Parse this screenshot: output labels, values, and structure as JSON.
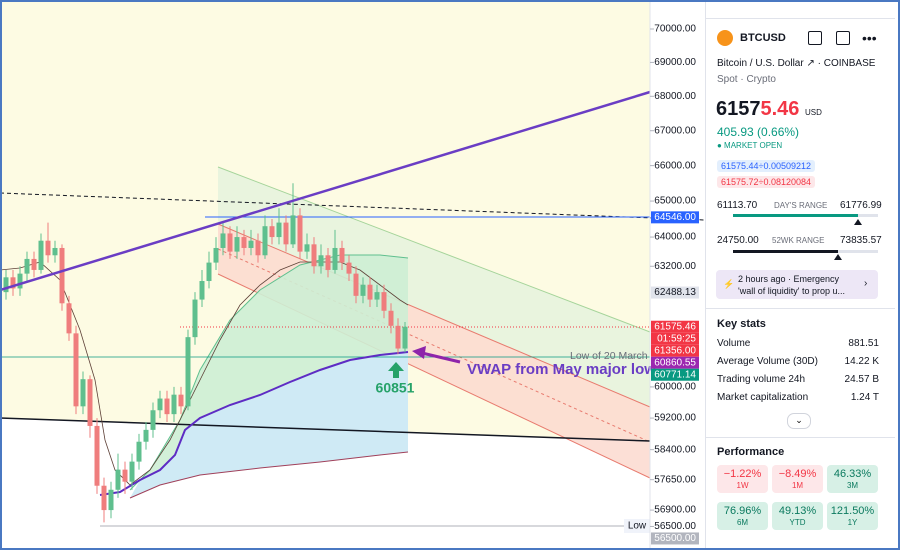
{
  "chart_data": {
    "type": "candlestick",
    "log_scale": true,
    "ylim": [
      55930,
      70880
    ],
    "yticks": [
      {
        "value": 70000,
        "label": "70000.00"
      },
      {
        "value": 69000,
        "label": "69000.00"
      },
      {
        "value": 68000,
        "label": "68000.00"
      },
      {
        "value": 67000,
        "label": "67000.00"
      },
      {
        "value": 66000,
        "label": "66000.00"
      },
      {
        "value": 65000,
        "label": "65000.00"
      },
      {
        "value": 64000,
        "label": "64000.00"
      },
      {
        "value": 63200,
        "label": "63200.00"
      },
      {
        "value": 60000,
        "label": "60000.00"
      },
      {
        "value": 59200,
        "label": "59200.00"
      },
      {
        "value": 58400,
        "label": "58400.00"
      },
      {
        "value": 57650,
        "label": "57650.00"
      },
      {
        "value": 56900,
        "label": "56900.00"
      },
      {
        "value": 56500,
        "label": "56500.00"
      }
    ],
    "up_color": "#5fbf8e",
    "down_color": "#ef7d7d",
    "ohlc": [
      [
        62500,
        63100,
        62300,
        62900
      ],
      [
        62900,
        63100,
        62400,
        62600
      ],
      [
        62600,
        63200,
        62400,
        63000
      ],
      [
        63000,
        63600,
        62800,
        63400
      ],
      [
        63400,
        63600,
        62900,
        63100
      ],
      [
        63100,
        64100,
        63000,
        63900
      ],
      [
        63900,
        64400,
        63300,
        63500
      ],
      [
        63500,
        63900,
        63300,
        63700
      ],
      [
        63700,
        63800,
        62000,
        62200
      ],
      [
        62200,
        62400,
        61200,
        61400
      ],
      [
        61400,
        61600,
        59300,
        59500
      ],
      [
        59500,
        60400,
        59300,
        60200
      ],
      [
        60200,
        60300,
        58700,
        59000
      ],
      [
        59000,
        59200,
        57300,
        57500
      ],
      [
        57500,
        57700,
        56600,
        56900
      ],
      [
        56900,
        57600,
        56700,
        57400
      ],
      [
        57400,
        58300,
        57200,
        57900
      ],
      [
        57900,
        58100,
        57300,
        57600
      ],
      [
        57600,
        58300,
        57400,
        58100
      ],
      [
        58100,
        58800,
        57900,
        58600
      ],
      [
        58600,
        59100,
        58400,
        58900
      ],
      [
        58900,
        59600,
        58700,
        59400
      ],
      [
        59400,
        59900,
        59200,
        59700
      ],
      [
        59700,
        59900,
        59100,
        59300
      ],
      [
        59300,
        60000,
        59100,
        59800
      ],
      [
        59800,
        60000,
        59300,
        59500
      ],
      [
        59500,
        61500,
        59400,
        61300
      ],
      [
        61300,
        62500,
        61100,
        62300
      ],
      [
        62300,
        63100,
        62100,
        62800
      ],
      [
        62800,
        63600,
        62600,
        63300
      ],
      [
        63300,
        64000,
        63100,
        63700
      ],
      [
        63700,
        64400,
        63500,
        64100
      ],
      [
        64100,
        64300,
        63400,
        63600
      ],
      [
        63600,
        64300,
        63400,
        64000
      ],
      [
        64000,
        64200,
        63500,
        63700
      ],
      [
        63700,
        64200,
        63500,
        63900
      ],
      [
        63900,
        64100,
        63300,
        63500
      ],
      [
        63500,
        64600,
        63400,
        64300
      ],
      [
        64300,
        64500,
        63800,
        64000
      ],
      [
        64000,
        64800,
        63800,
        64400
      ],
      [
        64400,
        64600,
        63600,
        63800
      ],
      [
        63800,
        65500,
        63700,
        64600
      ],
      [
        64600,
        64800,
        63400,
        63600
      ],
      [
        63600,
        64100,
        63400,
        63800
      ],
      [
        63800,
        64000,
        63000,
        63200
      ],
      [
        63200,
        63800,
        63000,
        63500
      ],
      [
        63500,
        63700,
        62900,
        63100
      ],
      [
        63100,
        64200,
        63000,
        63700
      ],
      [
        63700,
        63900,
        63100,
        63300
      ],
      [
        63300,
        63500,
        62800,
        63000
      ],
      [
        63000,
        63200,
        62200,
        62400
      ],
      [
        62400,
        62900,
        62200,
        62700
      ],
      [
        62700,
        62900,
        62100,
        62300
      ],
      [
        62300,
        62700,
        62100,
        62500
      ],
      [
        62500,
        62700,
        61800,
        62000
      ],
      [
        62000,
        62200,
        61400,
        61600
      ],
      [
        61600,
        61800,
        60851,
        61000
      ],
      [
        61000,
        61700,
        60900,
        61575
      ]
    ],
    "price_tags": [
      {
        "value": 64546,
        "label": "64546.00",
        "color": "#2962ff"
      },
      {
        "value": 62488.13,
        "label": "62488.13",
        "color": "#e0e3eb",
        "text_color": "#131722"
      },
      {
        "value": 61575.46,
        "label": "61575.46",
        "countdown": "01:59:25",
        "color": "#f23645"
      },
      {
        "value": 61356,
        "label": "61356.00",
        "color": "#f23645"
      },
      {
        "value": 60860.55,
        "label": "60860.55",
        "color": "#9c27b0"
      },
      {
        "value": 60771.14,
        "label": "60771.14",
        "color": "#089981"
      },
      {
        "value": 56500,
        "label": "56500.00",
        "color": "#b2b5be"
      }
    ],
    "annotations": {
      "vwap": "VWAP from May major low",
      "low_point": "60851",
      "low_march": "Low of 20 March",
      "low": "Low"
    }
  },
  "panel": {
    "symbol": "BTCUSD",
    "name": "Bitcoin / U.S. Dollar",
    "exchange": "· COINBASE",
    "kind": "Spot · Crypto",
    "price_main": "6157",
    "price_tail": "5.46",
    "currency": "USD",
    "change": "405.93 (0.66%)",
    "status": "● MARKET OPEN",
    "bid": "61575.44÷0.00509212",
    "ask": "61575.72÷0.08120084",
    "day_low": "61113.70",
    "day_label": "DAY'S RANGE",
    "day_high": "61776.99",
    "wk_low": "24750.00",
    "wk_label": "52WK RANGE",
    "wk_high": "73835.57",
    "news_time": "2 hours ago  ·  Emergency",
    "news_text": "'wall of liquidity' to prop u...",
    "key_stats": "Key stats",
    "stats": [
      [
        "Volume",
        "881.51"
      ],
      [
        "Average Volume (30D)",
        "14.22 K"
      ],
      [
        "Trading volume 24h",
        "24.57 B"
      ],
      [
        "Market capitalization",
        "1.24 T"
      ]
    ],
    "performance": "Performance",
    "perf": [
      [
        "−1.22%",
        "1W"
      ],
      [
        "−8.49%",
        "1M"
      ],
      [
        "46.33%",
        "3M"
      ],
      [
        "76.96%",
        "6M"
      ],
      [
        "49.13%",
        "YTD"
      ],
      [
        "121.50%",
        "1Y"
      ]
    ]
  }
}
